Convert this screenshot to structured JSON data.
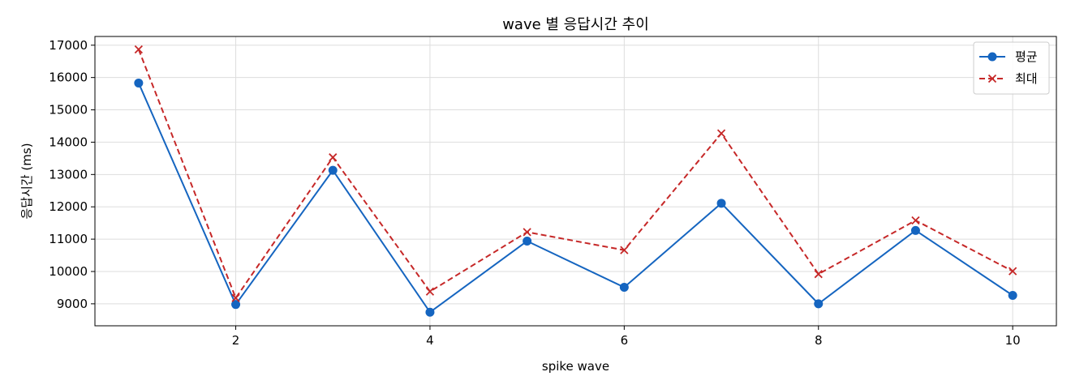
{
  "chart_data": {
    "type": "line",
    "title": "wave 별 응답시간 추이",
    "xlabel": "spike wave",
    "ylabel": "응답시간 (ms)",
    "x": [
      1,
      2,
      3,
      4,
      5,
      6,
      7,
      8,
      9,
      10
    ],
    "x_ticks": [
      2,
      4,
      6,
      8,
      10
    ],
    "y_ticks": [
      9000,
      10000,
      11000,
      12000,
      13000,
      14000,
      15000,
      16000,
      17000
    ],
    "xlim": [
      0.55,
      10.45
    ],
    "ylim": [
      8320,
      17270
    ],
    "grid": true,
    "legend_position": "upper right",
    "series": [
      {
        "name": "평균",
        "color": "#1565c0",
        "line_style": "solid",
        "marker": "circle",
        "values": [
          15830,
          8980,
          13130,
          8740,
          10940,
          9510,
          12110,
          9000,
          11270,
          9260
        ]
      },
      {
        "name": "최대",
        "color": "#c62828",
        "line_style": "dashed",
        "marker": "x",
        "values": [
          16870,
          9180,
          13530,
          9380,
          11220,
          10660,
          14270,
          9920,
          11580,
          10010
        ]
      }
    ]
  }
}
